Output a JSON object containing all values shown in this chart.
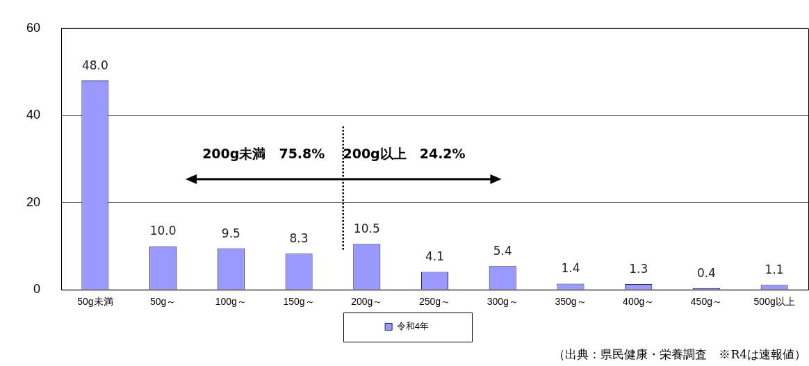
{
  "chart_data": {
    "type": "bar",
    "categories": [
      "50g未満",
      "50g～",
      "100g～",
      "150g～",
      "200g～",
      "250g～",
      "300g～",
      "350g～",
      "400g～",
      "450g～",
      "500g以上"
    ],
    "series": [
      {
        "name": "令和4年",
        "color": "#9999ff",
        "values": [
          48.0,
          10.0,
          9.5,
          8.3,
          10.5,
          4.1,
          5.4,
          1.4,
          1.3,
          0.4,
          1.1
        ],
        "value_labels": [
          "48.0",
          "10.0",
          "9.5",
          "8.3",
          "10.5",
          "4.1",
          "5.4",
          "1.4",
          "1.3",
          "0.4",
          "1.1"
        ]
      }
    ],
    "ylim": [
      0,
      60
    ],
    "yticks": [
      0,
      20,
      40,
      60
    ],
    "grid": "y",
    "legend": "bottom",
    "annotations": [
      "200g未満　75.8%",
      "200g以上　24.2%",
      "（出典：県民健康・栄養調査　※R4は速報値）"
    ]
  }
}
